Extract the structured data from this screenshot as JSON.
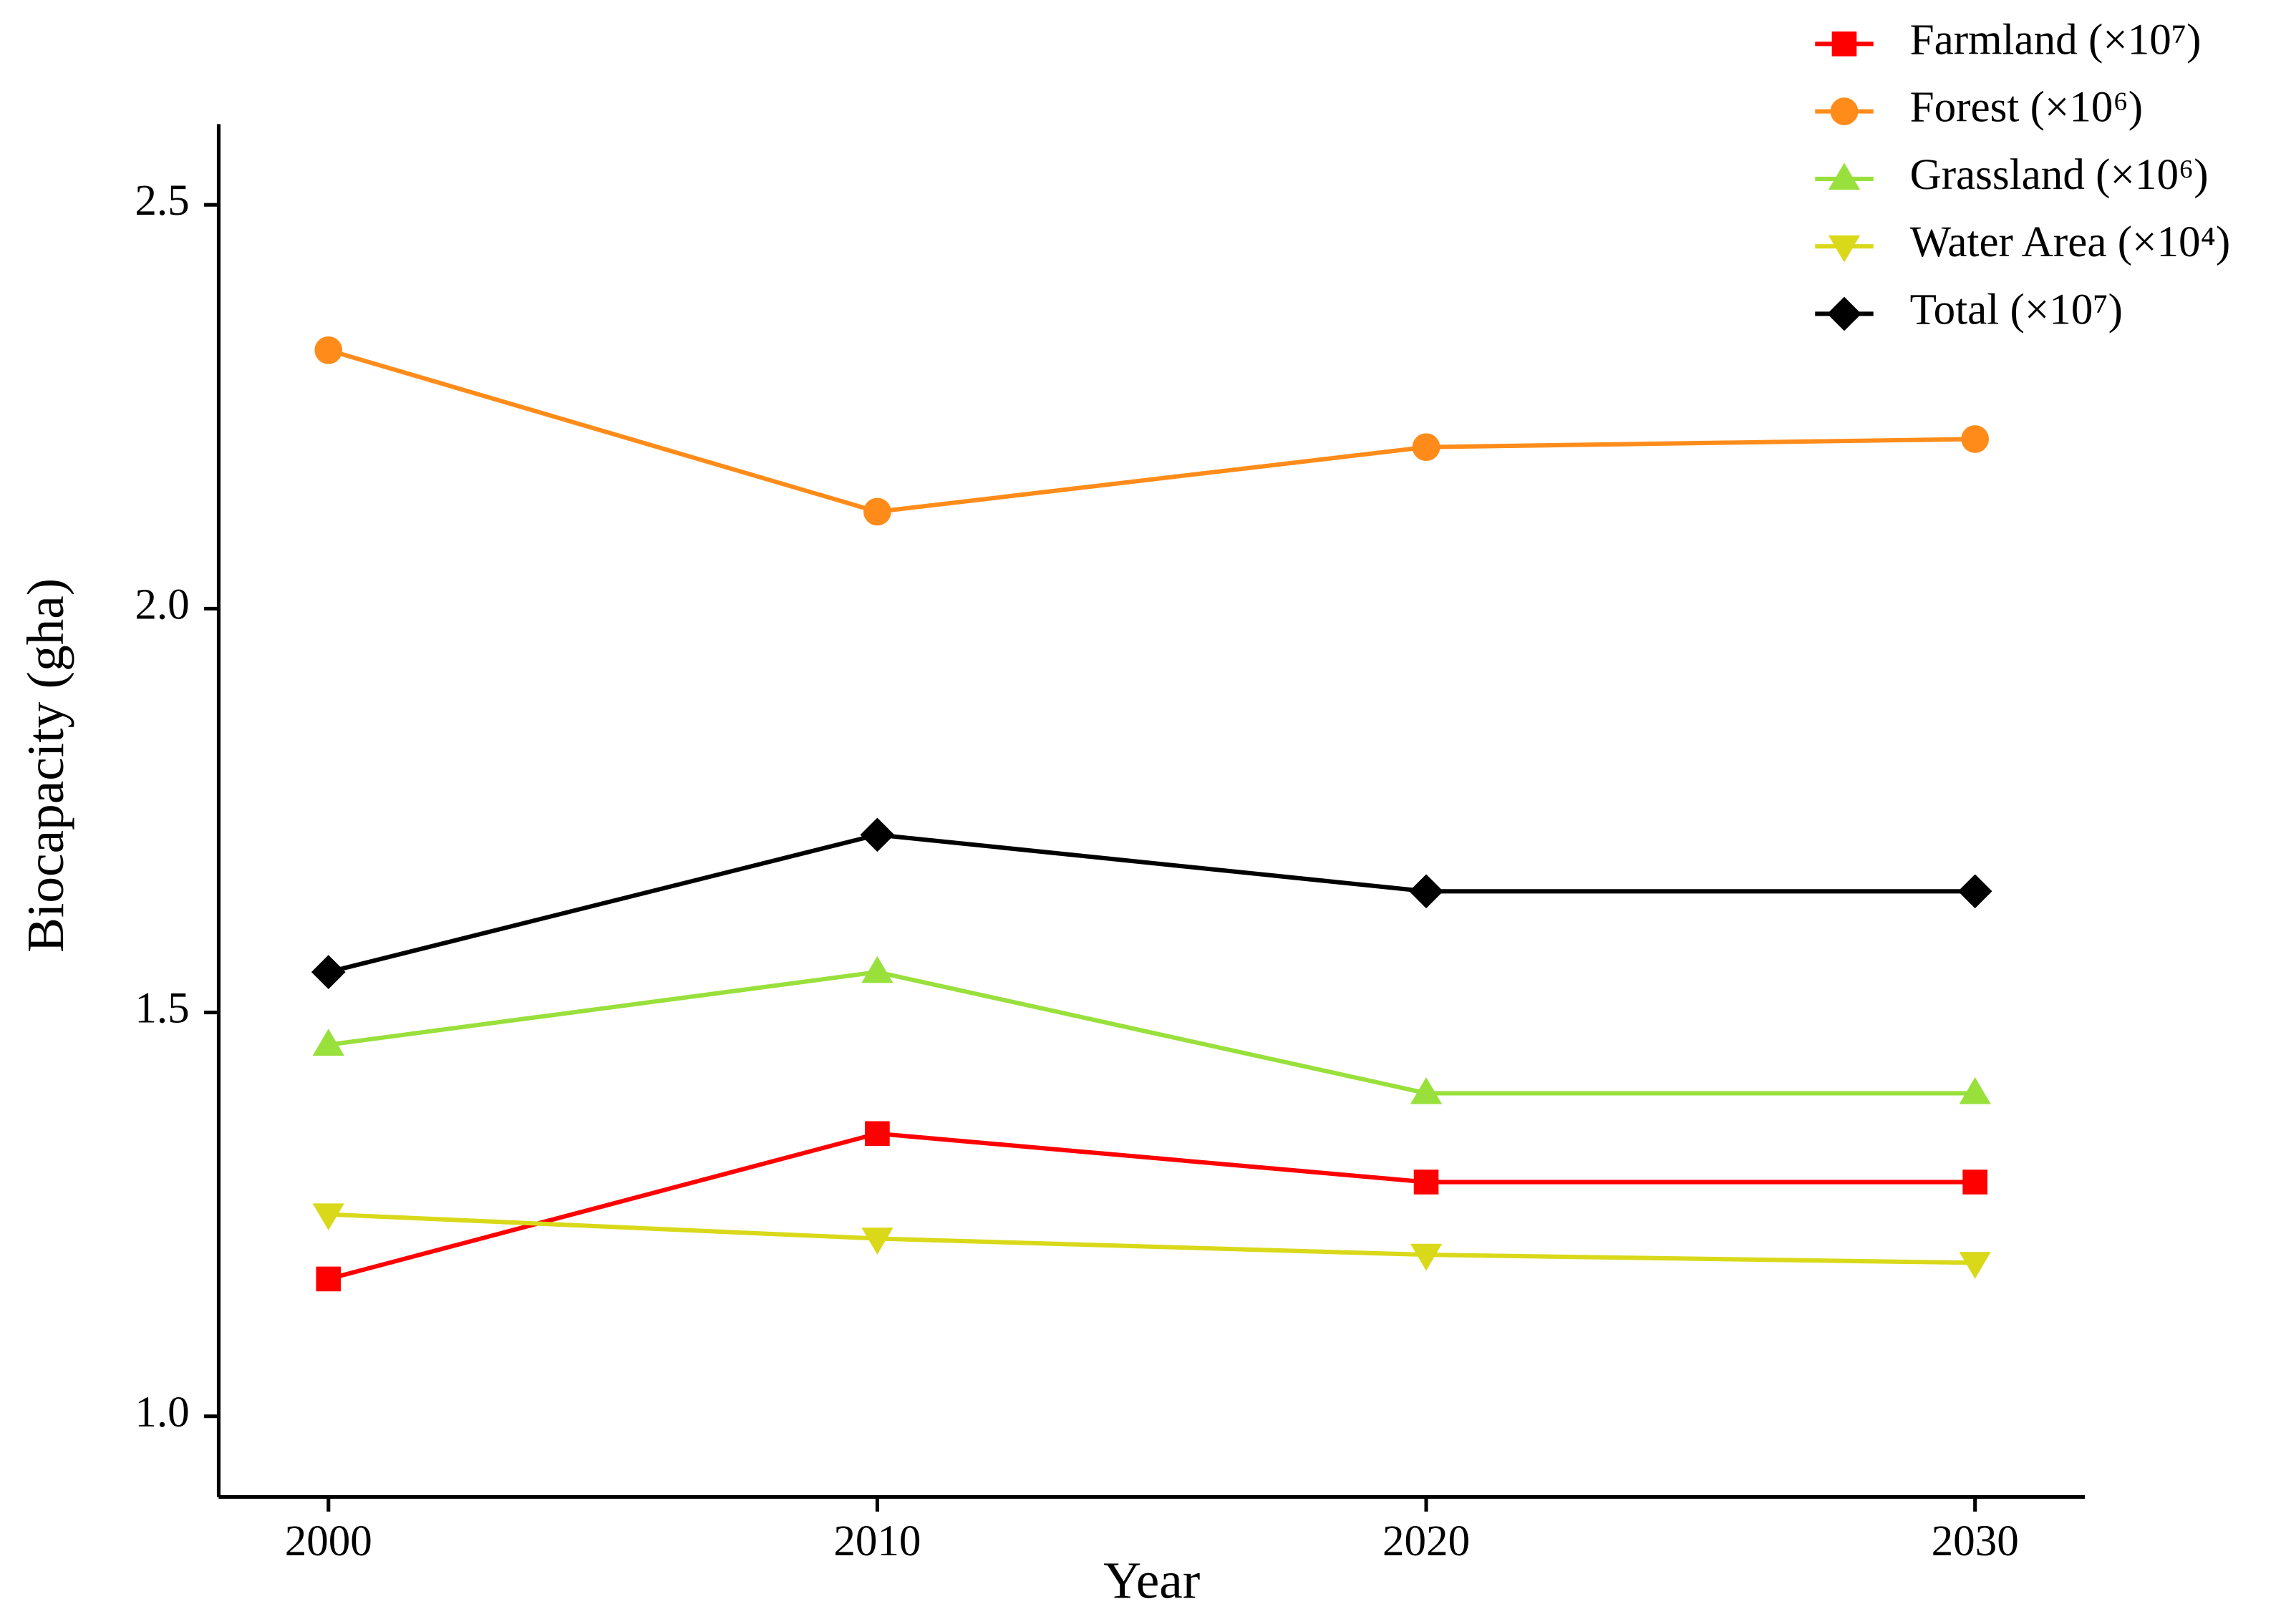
{
  "chart_data": {
    "type": "line",
    "x_label": "Year",
    "y_label": "Biocapacity (gha)",
    "x": [
      2000,
      2010,
      2020,
      2030
    ],
    "xlim": [
      1998,
      2032
    ],
    "xticks": [
      2000,
      2010,
      2020,
      2030
    ],
    "ylim": [
      0.9,
      2.6
    ],
    "yticks": [
      {
        "value": 1,
        "label": "1.0"
      },
      1.5,
      {
        "value": 2,
        "label": "2.0"
      },
      2.5
    ],
    "legend": "top-right",
    "series": [
      {
        "name": "Farmland (×10⁷)",
        "color": "#ff0000",
        "marker": "square",
        "values": [
          1.17,
          1.35,
          1.29,
          1.29
        ]
      },
      {
        "name": "Forest (×10⁶)",
        "color": "#ff8c1a",
        "marker": "circle",
        "values": [
          2.32,
          2.12,
          2.2,
          2.21
        ]
      },
      {
        "name": "Grassland (×10⁶)",
        "color": "#99e03c",
        "marker": "triangle-up",
        "values": [
          1.46,
          1.55,
          1.4,
          1.4
        ]
      },
      {
        "name": "Water Area (×10⁴)",
        "color": "#d9d91a",
        "marker": "triangle-down",
        "values": [
          1.25,
          1.22,
          1.2,
          1.19
        ]
      },
      {
        "name": "Total (×10⁷)",
        "color": "#000000",
        "marker": "diamond",
        "values": [
          1.55,
          1.72,
          1.65,
          1.65
        ]
      }
    ]
  }
}
